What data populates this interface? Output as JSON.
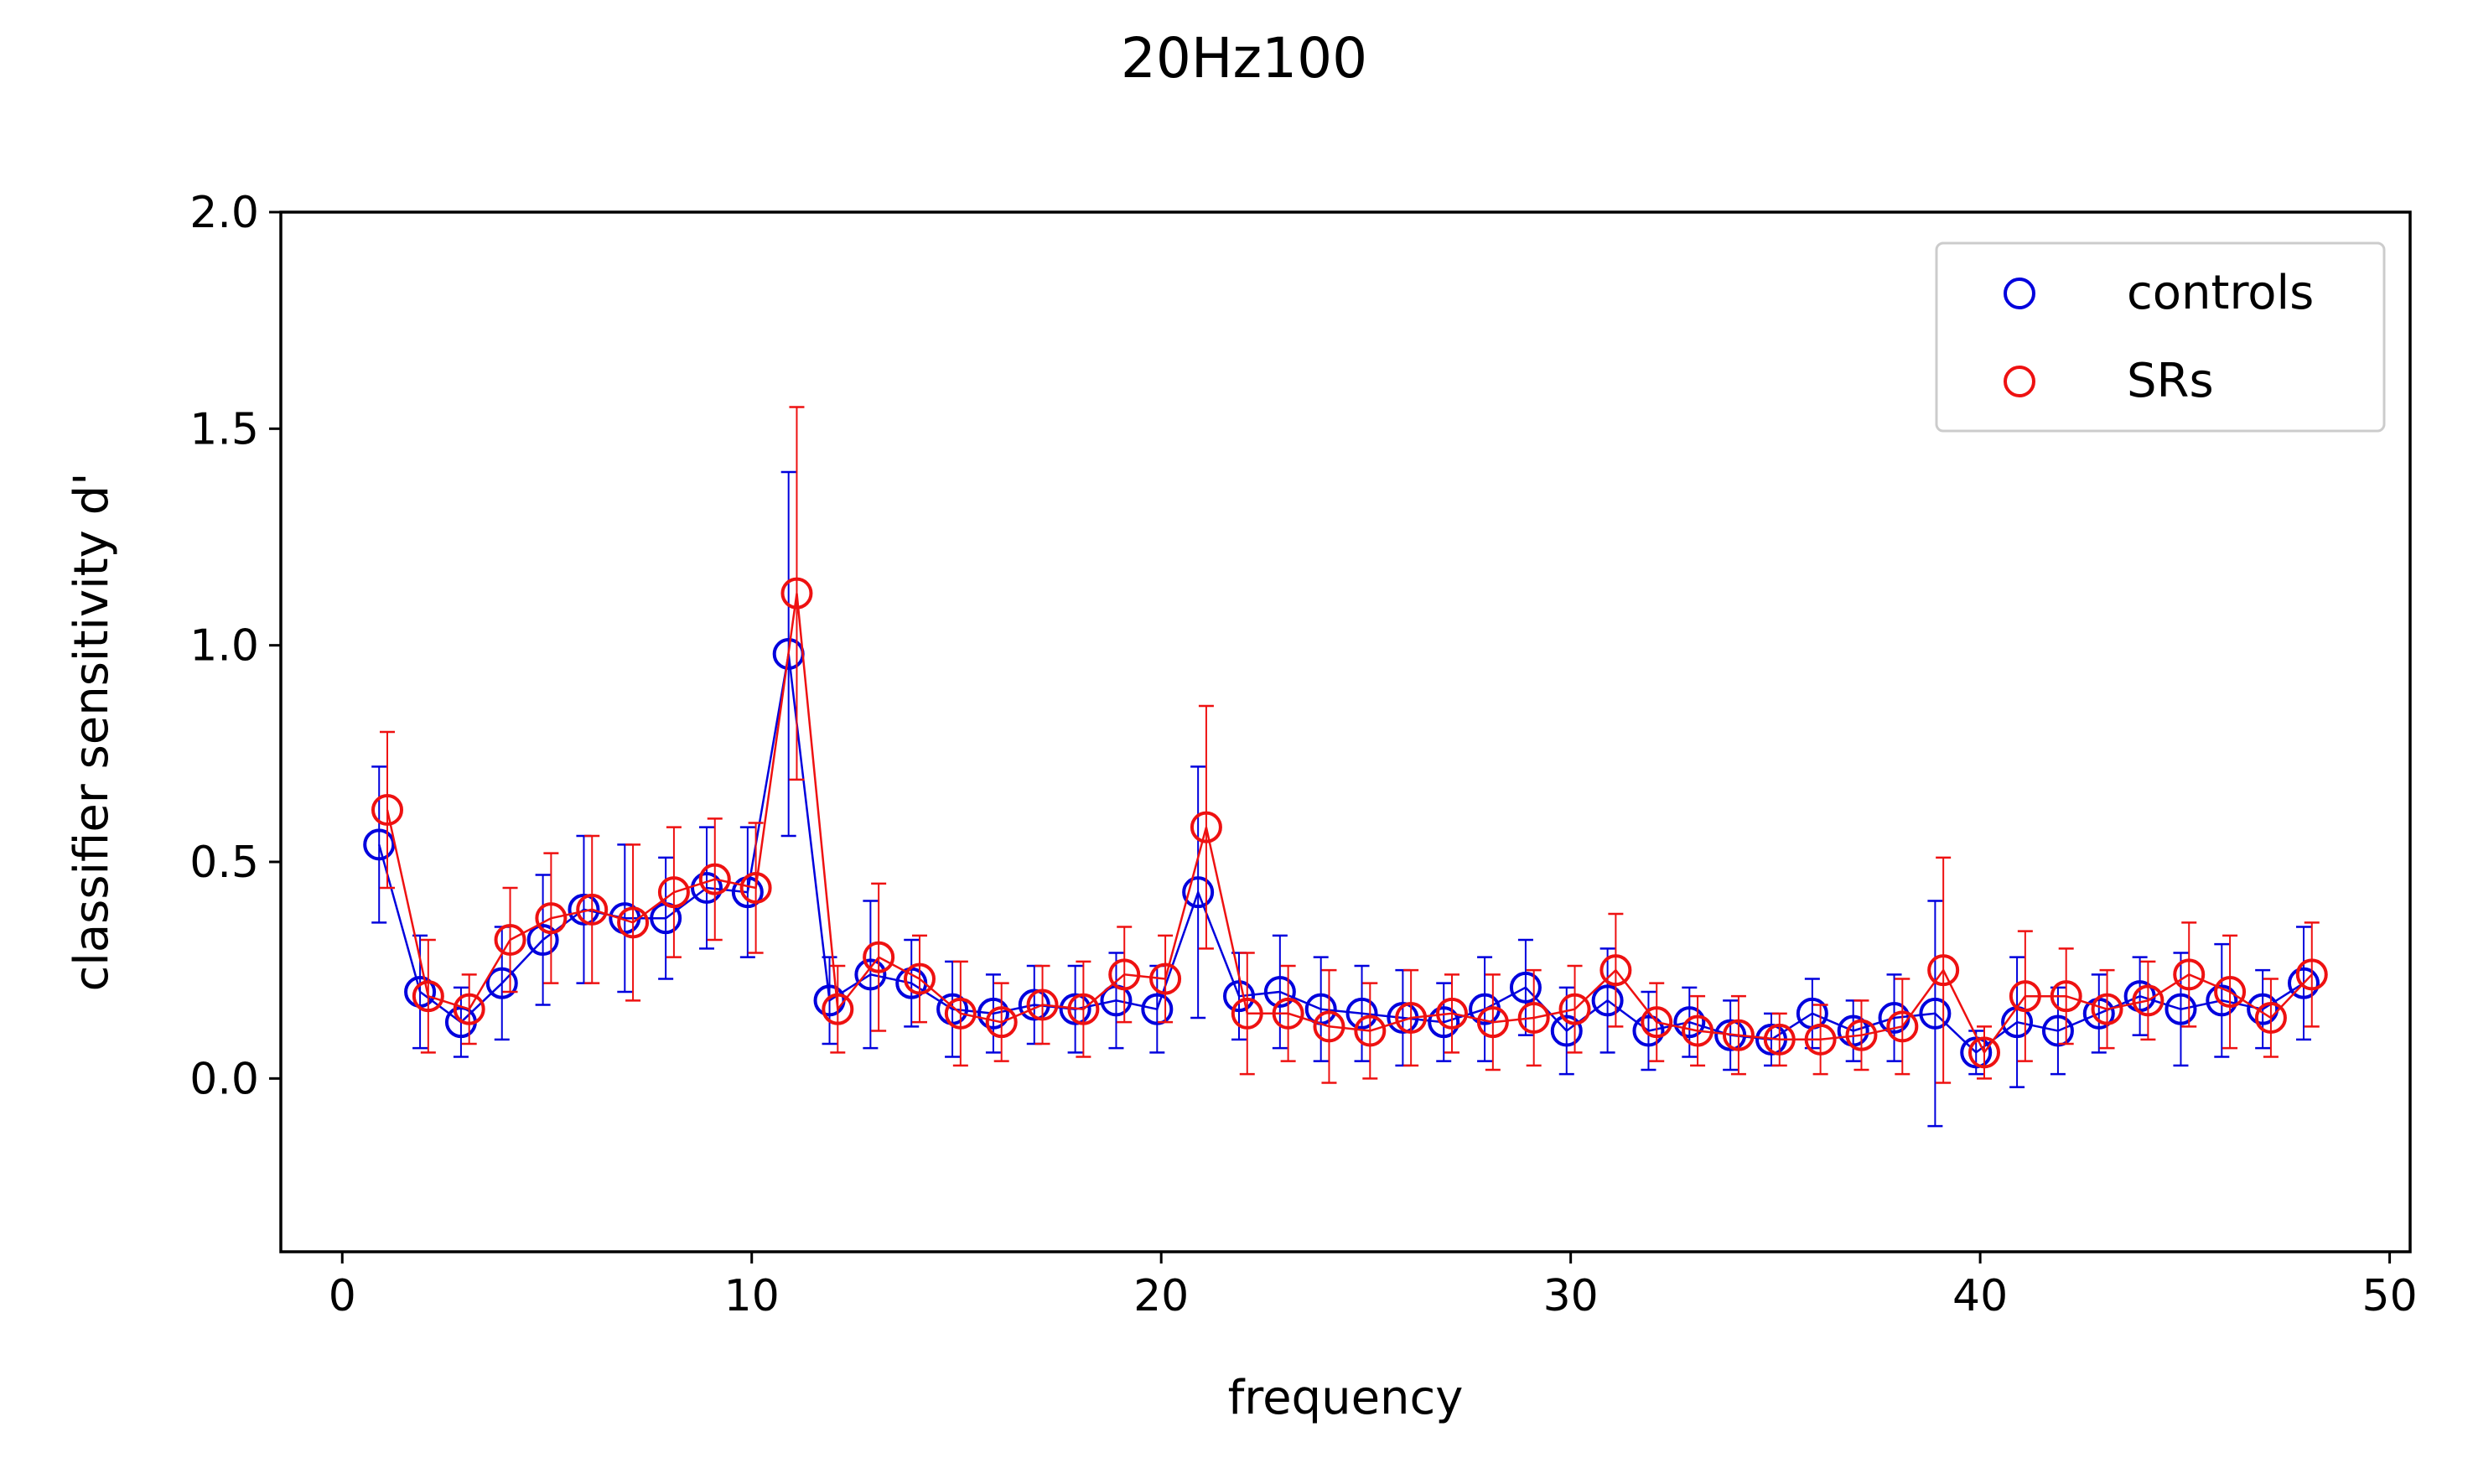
{
  "chart_data": {
    "type": "scatter",
    "title": "20Hz100",
    "xlabel": "frequency",
    "ylabel": "classifier sensitivity d'",
    "xlim": [
      -1.5,
      50.5
    ],
    "ylim": [
      -0.4,
      2.0
    ],
    "xticks": [
      0,
      10,
      20,
      30,
      40,
      50
    ],
    "xtick_labels": [
      "0",
      "10",
      "20",
      "30",
      "40",
      "50"
    ],
    "yticks": [
      0.0,
      0.5,
      1.0,
      1.5,
      2.0
    ],
    "ytick_labels": [
      "0.0",
      "0.5",
      "1.0",
      "1.5",
      "2.0"
    ],
    "grid": false,
    "legend_position": "top-right",
    "x": [
      1,
      2,
      3,
      4,
      5,
      6,
      7,
      8,
      9,
      10,
      11,
      12,
      13,
      14,
      15,
      16,
      17,
      18,
      19,
      20,
      21,
      22,
      23,
      24,
      25,
      26,
      27,
      28,
      29,
      30,
      31,
      32,
      33,
      34,
      35,
      36,
      37,
      38,
      39,
      40,
      41,
      42,
      43,
      44,
      45,
      46,
      47,
      48
    ],
    "series": [
      {
        "name": "controls",
        "color": "#0000dd",
        "x_offset": -0.1,
        "values": [
          0.54,
          0.2,
          0.13,
          0.22,
          0.32,
          0.39,
          0.37,
          0.37,
          0.44,
          0.43,
          0.98,
          0.18,
          0.24,
          0.22,
          0.16,
          0.15,
          0.17,
          0.16,
          0.18,
          0.16,
          0.43,
          0.19,
          0.2,
          0.16,
          0.15,
          0.14,
          0.13,
          0.16,
          0.21,
          0.11,
          0.18,
          0.11,
          0.13,
          0.1,
          0.09,
          0.15,
          0.11,
          0.14,
          0.15,
          0.06,
          0.13,
          0.11,
          0.15,
          0.19,
          0.16,
          0.18,
          0.16,
          0.22
        ],
        "errors": [
          0.18,
          0.13,
          0.08,
          0.13,
          0.15,
          0.17,
          0.17,
          0.14,
          0.14,
          0.15,
          0.42,
          0.1,
          0.17,
          0.1,
          0.11,
          0.09,
          0.09,
          0.1,
          0.11,
          0.1,
          0.29,
          0.1,
          0.13,
          0.12,
          0.11,
          0.11,
          0.09,
          0.12,
          0.11,
          0.1,
          0.12,
          0.09,
          0.08,
          0.08,
          0.06,
          0.08,
          0.07,
          0.1,
          0.26,
          0.05,
          0.15,
          0.1,
          0.09,
          0.09,
          0.13,
          0.13,
          0.09,
          0.13
        ]
      },
      {
        "name": "SRs",
        "color": "#ee1111",
        "x_offset": 0.1,
        "values": [
          0.62,
          0.19,
          0.16,
          0.32,
          0.37,
          0.39,
          0.36,
          0.43,
          0.46,
          0.44,
          1.12,
          0.16,
          0.28,
          0.23,
          0.15,
          0.13,
          0.17,
          0.16,
          0.24,
          0.23,
          0.58,
          0.15,
          0.15,
          0.12,
          0.11,
          0.14,
          0.15,
          0.13,
          0.14,
          0.16,
          0.25,
          0.13,
          0.11,
          0.1,
          0.09,
          0.09,
          0.1,
          0.12,
          0.25,
          0.06,
          0.19,
          0.19,
          0.16,
          0.18,
          0.24,
          0.2,
          0.14,
          0.24
        ],
        "errors": [
          0.18,
          0.13,
          0.08,
          0.12,
          0.15,
          0.17,
          0.18,
          0.15,
          0.14,
          0.15,
          0.43,
          0.1,
          0.17,
          0.1,
          0.12,
          0.09,
          0.09,
          0.11,
          0.11,
          0.1,
          0.28,
          0.14,
          0.11,
          0.13,
          0.11,
          0.11,
          0.09,
          0.11,
          0.11,
          0.1,
          0.13,
          0.09,
          0.08,
          0.09,
          0.06,
          0.08,
          0.08,
          0.11,
          0.26,
          0.06,
          0.15,
          0.11,
          0.09,
          0.09,
          0.12,
          0.13,
          0.09,
          0.12
        ]
      }
    ]
  }
}
